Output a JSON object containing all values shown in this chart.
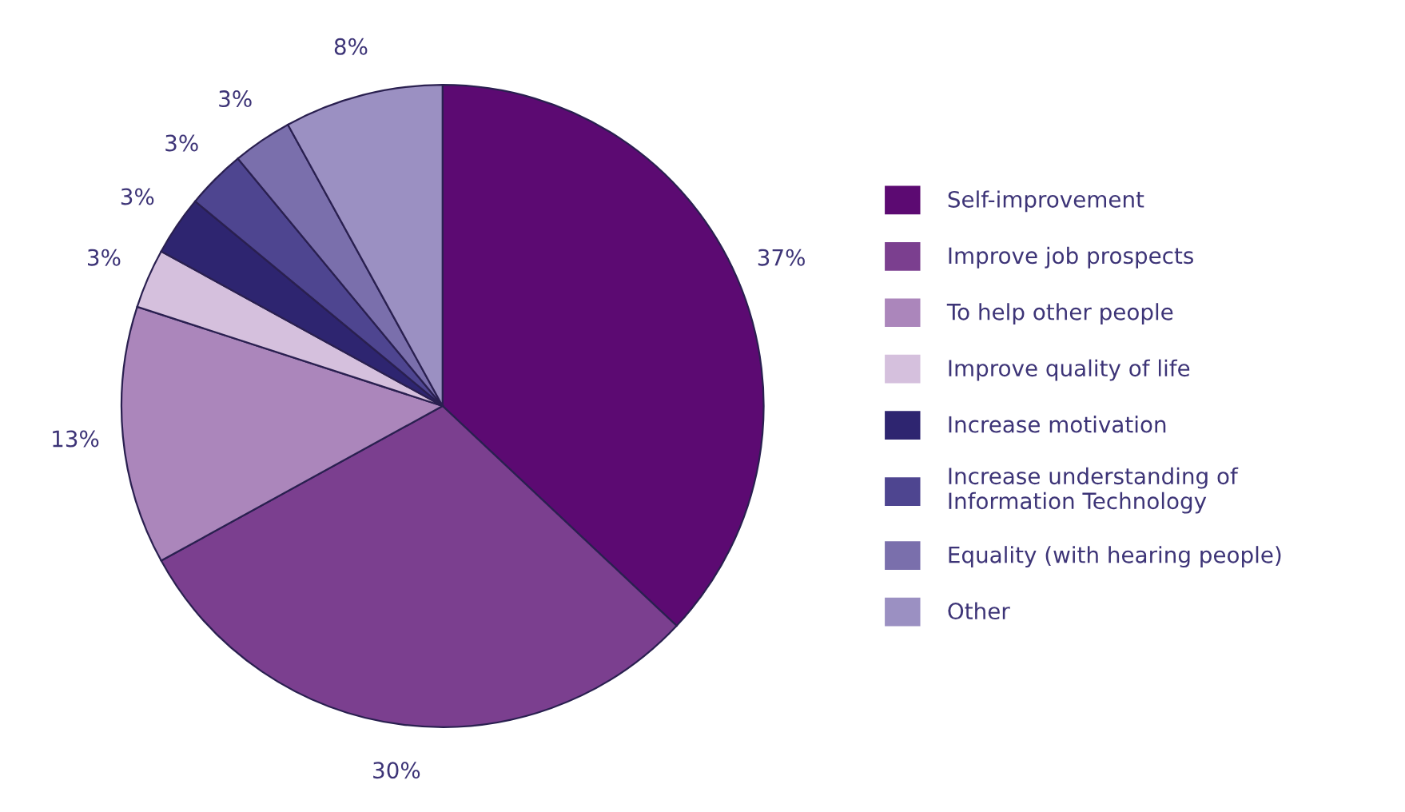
{
  "chart_data": {
    "type": "pie",
    "categories": [
      "Self-improvement",
      "Improve job prospects",
      "To help other people",
      "Improve quality of life",
      "Increase motivation",
      "Increase understanding of\nInformation Technology",
      "Equality (with hearing people)",
      "Other"
    ],
    "values": [
      37,
      30,
      13,
      3,
      3,
      3,
      3,
      8
    ],
    "colors": [
      "#5c0a72",
      "#7b3f8f",
      "#ab86bb",
      "#d5c0dd",
      "#2e2570",
      "#4e4590",
      "#7a6fac",
      "#9b90c2"
    ],
    "value_labels": [
      "37%",
      "30%",
      "13%",
      "3%",
      "3%",
      "3%",
      "3%",
      "8%"
    ],
    "legend": "right"
  }
}
